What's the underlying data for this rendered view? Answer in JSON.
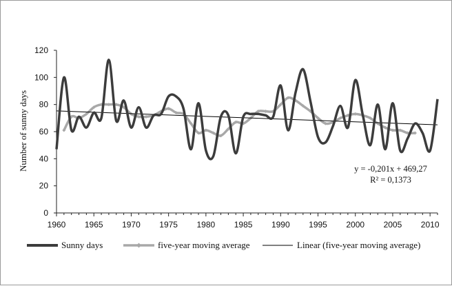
{
  "chart_data": {
    "type": "line",
    "title": "",
    "xlabel": "",
    "ylabel": "Number of sunny days",
    "xlim": [
      1960,
      2011
    ],
    "ylim": [
      0,
      120
    ],
    "xticks": [
      1960,
      1965,
      1970,
      1975,
      1980,
      1985,
      1990,
      1995,
      2000,
      2005,
      2010
    ],
    "yticks": [
      0,
      20,
      40,
      60,
      80,
      100,
      120
    ],
    "grid": false,
    "legend_position": "bottom",
    "series": [
      {
        "name": "Sunny days",
        "color": "#3c3c3c",
        "x": [
          1960,
          1961,
          1962,
          1963,
          1964,
          1965,
          1966,
          1967,
          1968,
          1969,
          1970,
          1971,
          1972,
          1973,
          1974,
          1975,
          1976,
          1977,
          1978,
          1979,
          1980,
          1981,
          1982,
          1983,
          1984,
          1985,
          1986,
          1987,
          1988,
          1989,
          1990,
          1991,
          1992,
          1993,
          1994,
          1995,
          1996,
          1997,
          1998,
          1999,
          2000,
          2001,
          2002,
          2003,
          2004,
          2005,
          2006,
          2007,
          2008,
          2009,
          2010,
          2011
        ],
        "values": [
          47,
          100,
          61,
          71,
          63,
          74,
          70,
          113,
          68,
          83,
          63,
          78,
          63,
          72,
          73,
          86,
          86,
          77,
          47,
          81,
          46,
          42,
          71,
          72,
          44,
          71,
          73,
          73,
          72,
          71,
          94,
          61,
          89,
          106,
          82,
          56,
          52,
          64,
          79,
          63,
          98,
          72,
          50,
          80,
          47,
          81,
          46,
          55,
          66,
          59,
          46,
          84
        ]
      },
      {
        "name": "five-year moving average",
        "color": "#a8a8a8",
        "x": [
          1961,
          1962,
          1963,
          1964,
          1965,
          1966,
          1967,
          1968,
          1969,
          1970,
          1971,
          1972,
          1973,
          1974,
          1975,
          1976,
          1977,
          1978,
          1979,
          1980,
          1981,
          1982,
          1983,
          1984,
          1985,
          1986,
          1987,
          1988,
          1989,
          1990,
          1991,
          1992,
          1993,
          1994,
          1995,
          1996,
          1997,
          1998,
          1999,
          2000,
          2001,
          2002,
          2003,
          2004,
          2005,
          2006,
          2007,
          2008
        ],
        "values": [
          61,
          71,
          70,
          73,
          78,
          80,
          80,
          80,
          78,
          73,
          71,
          71,
          72,
          75,
          77,
          74,
          73,
          66,
          59,
          61,
          59,
          57,
          62,
          67,
          66,
          70,
          75,
          75,
          75,
          80,
          85,
          83,
          79,
          75,
          70,
          66,
          67,
          70,
          72,
          73,
          72,
          70,
          66,
          63,
          61,
          61,
          59,
          59
        ]
      },
      {
        "name": "Linear (five-year moving average)",
        "color": "#000000",
        "type": "trendline",
        "x": [
          1960,
          2011
        ],
        "values": [
          75.3,
          65.0
        ]
      }
    ],
    "annotations": [
      "y = -0,201x + 469,27",
      "R² = 0,1373"
    ]
  }
}
